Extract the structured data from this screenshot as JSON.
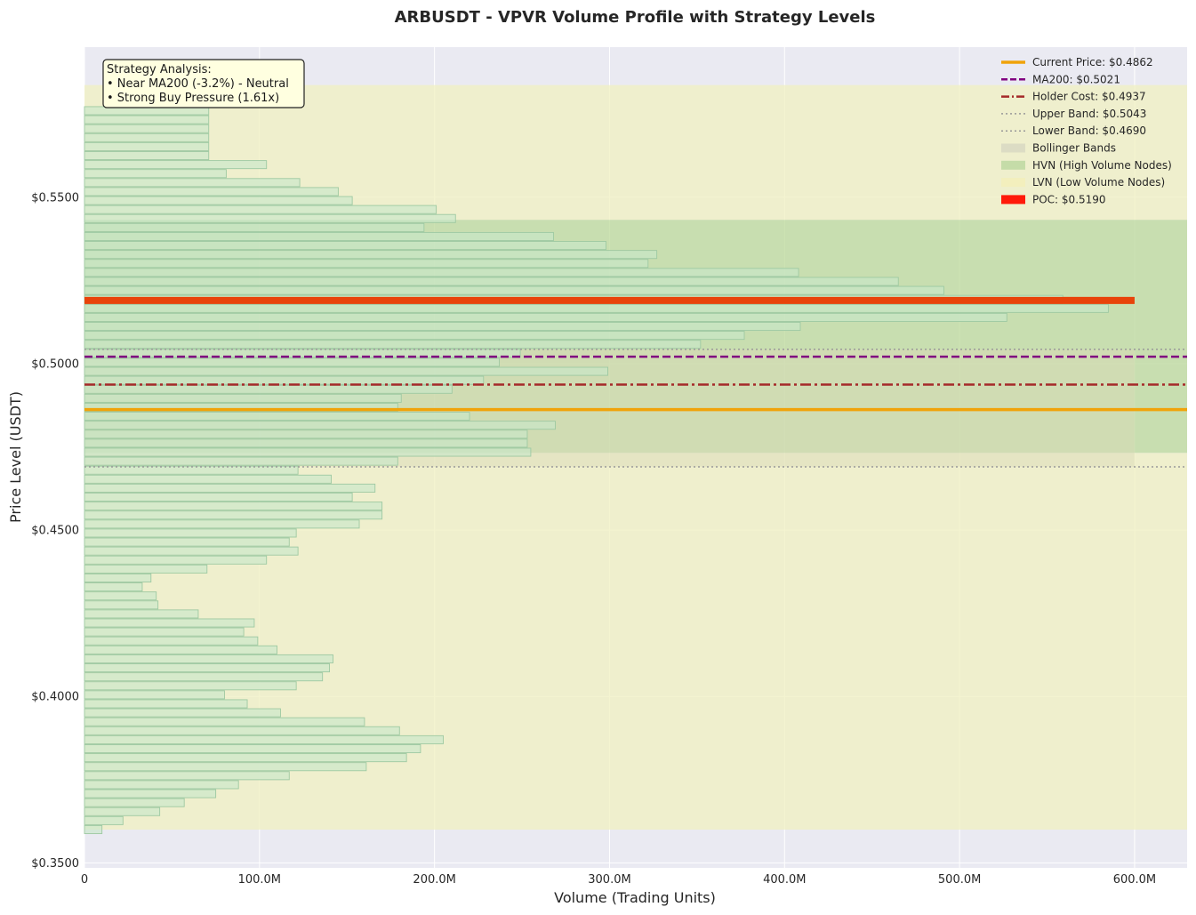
{
  "chart_data": {
    "type": "bar",
    "orientation": "horizontal",
    "title": "ARBUSDT - VPVR Volume Profile with Strategy Levels",
    "xlabel": "Volume (Trading Units)",
    "ylabel": "Price Level (USDT)",
    "xlim": [
      0,
      630000000
    ],
    "ylim": [
      0.3485,
      0.5951
    ],
    "x_ticks": [
      0,
      100000000,
      200000000,
      300000000,
      400000000,
      500000000,
      600000000
    ],
    "x_tick_labels": [
      "0",
      "100.0M",
      "200.0M",
      "300.0M",
      "400.0M",
      "500.0M",
      "600.0M"
    ],
    "y_ticks": [
      0.35,
      0.4,
      0.45,
      0.5,
      0.55
    ],
    "y_tick_labels": [
      "$0.3500",
      "$0.4000",
      "$0.4500",
      "$0.5000",
      "$0.5500"
    ],
    "grid": true,
    "legend_position": "top-right",
    "bar_height": 0.00243,
    "volume_bars": {
      "price_start": 0.36,
      "price_step": 0.0027,
      "volumes_millions": [
        10,
        22,
        43,
        57,
        75,
        88,
        117,
        161,
        184,
        192,
        205,
        180,
        160,
        112,
        93,
        80,
        121,
        136,
        140,
        142,
        110,
        99,
        91,
        97,
        65,
        42,
        41,
        33,
        38,
        70,
        104,
        122,
        117,
        121,
        157,
        170,
        170,
        153,
        166,
        141,
        122,
        179,
        255,
        253,
        253,
        269,
        220,
        179,
        181,
        210,
        228,
        299,
        237,
        249,
        352,
        377,
        409,
        527,
        585,
        559,
        491,
        465,
        408,
        322,
        327,
        298,
        268,
        194,
        212,
        201,
        153,
        145,
        123,
        81,
        104,
        71,
        71,
        71,
        71,
        71,
        71
      ]
    },
    "levels": {
      "current_price": 0.4862,
      "ma200": 0.5021,
      "holder_cost": 0.4937,
      "upper_band": 0.5043,
      "lower_band": 0.469,
      "poc": 0.519,
      "poc_volume_extent": 600000000,
      "hvn_zone": [
        0.4732,
        0.5432
      ],
      "lvn_zone_top": [
        0.5432,
        0.5837
      ],
      "lvn_zone_bottom": [
        0.36,
        0.4732
      ],
      "bollinger_band_volume_extent": 600000000
    },
    "colors": {
      "background": "#eaeaf2",
      "volume_bar_fill": "#c8e6c9",
      "volume_bar_edge": "#9ec9a2",
      "current_price": "#f0a30a",
      "ma200": "#800080",
      "holder_cost": "#a52a2a",
      "bands": "#999999",
      "bollinger_fill": "#d9d9b8",
      "hvn_fill": "#bcd99a",
      "lvn_fill": "#f0f0c0",
      "poc": "#e8430a",
      "poc_legend": "#ff0000"
    },
    "legend": [
      {
        "label": "Current Price: $0.4862",
        "style": "solid-line",
        "color": "#f0a30a"
      },
      {
        "label": "MA200: $0.5021",
        "style": "dashed-line",
        "color": "#800080"
      },
      {
        "label": "Holder Cost: $0.4937",
        "style": "dashdot-line",
        "color": "#a52a2a"
      },
      {
        "label": "Upper Band: $0.5043",
        "style": "dotted-line",
        "color": "#999999"
      },
      {
        "label": "Lower Band: $0.4690",
        "style": "dotted-line",
        "color": "#999999"
      },
      {
        "label": "Bollinger Bands",
        "style": "patch",
        "color": "#dcdcc4"
      },
      {
        "label": "HVN (High Volume Nodes)",
        "style": "patch",
        "color": "#c5dca8"
      },
      {
        "label": "LVN (Low Volume Nodes)",
        "style": "patch",
        "color": "#f3efbd"
      },
      {
        "label": "POC: $0.5190",
        "style": "patch",
        "color": "#ff1a0a"
      }
    ],
    "annotation": {
      "lines": [
        "Strategy Analysis:",
        "• Near MA200 (-3.2%) - Neutral",
        "• Strong Buy Pressure (1.61x)"
      ]
    }
  }
}
